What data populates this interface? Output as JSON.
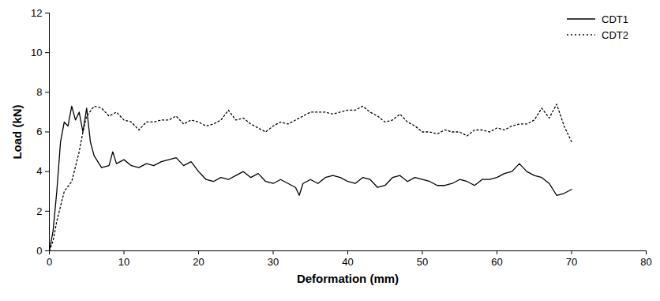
{
  "chart_data": {
    "type": "line",
    "x_label": "Deformation (mm)",
    "y_label": "Load (kN)",
    "xlim": [
      0,
      80
    ],
    "xticks": [
      0,
      10,
      20,
      30,
      40,
      50,
      60,
      70,
      80
    ],
    "ylim": [
      0,
      12
    ],
    "yticks": [
      0,
      2,
      4,
      6,
      8,
      10,
      12
    ],
    "grid": false,
    "legend": "top-right",
    "series": [
      {
        "name": "CDT1",
        "color": "#000000",
        "line_style": "solid",
        "x": [
          0,
          0.5,
          1,
          1.5,
          2,
          2.5,
          3,
          3.5,
          4,
          4.5,
          5,
          5.5,
          6,
          7,
          8,
          8.5,
          9,
          10,
          11,
          12,
          13,
          14,
          15,
          16,
          17,
          18,
          19,
          20,
          21,
          22,
          23,
          24,
          25,
          26,
          27,
          28,
          29,
          30,
          31,
          32,
          33,
          33.5,
          34,
          35,
          36,
          37,
          38,
          39,
          40,
          41,
          42,
          43,
          44,
          45,
          46,
          47,
          48,
          49,
          50,
          51,
          52,
          53,
          54,
          55,
          56,
          57,
          58,
          59,
          60,
          61,
          62,
          63,
          64,
          65,
          66,
          67,
          68,
          69,
          70
        ],
        "values": [
          0,
          1,
          3,
          5.5,
          6.5,
          6.3,
          7.3,
          6.6,
          7.0,
          6.0,
          7.2,
          5.5,
          4.8,
          4.2,
          4.3,
          5.0,
          4.4,
          4.6,
          4.3,
          4.2,
          4.4,
          4.3,
          4.5,
          4.6,
          4.7,
          4.3,
          4.5,
          4.0,
          3.6,
          3.5,
          3.7,
          3.6,
          3.8,
          4.0,
          3.7,
          3.9,
          3.5,
          3.4,
          3.6,
          3.4,
          3.2,
          2.8,
          3.4,
          3.6,
          3.4,
          3.7,
          3.8,
          3.7,
          3.5,
          3.4,
          3.7,
          3.6,
          3.2,
          3.3,
          3.7,
          3.8,
          3.5,
          3.7,
          3.6,
          3.5,
          3.3,
          3.3,
          3.4,
          3.6,
          3.5,
          3.3,
          3.6,
          3.6,
          3.7,
          3.9,
          4.0,
          4.4,
          4.0,
          3.8,
          3.7,
          3.4,
          2.8,
          2.9,
          3.1
        ]
      },
      {
        "name": "CDT2",
        "color": "#000000",
        "line_style": "dotted",
        "x": [
          0,
          0.5,
          1,
          2,
          3,
          4,
          4.5,
          5,
          6,
          7,
          8,
          9,
          10,
          11,
          12,
          13,
          14,
          15,
          16,
          17,
          18,
          19,
          20,
          21,
          22,
          23,
          24,
          25,
          26,
          27,
          28,
          29,
          30,
          31,
          32,
          33,
          34,
          35,
          36,
          37,
          38,
          39,
          40,
          41,
          42,
          43,
          44,
          45,
          46,
          47,
          48,
          49,
          50,
          51,
          52,
          53,
          54,
          55,
          56,
          57,
          58,
          59,
          60,
          61,
          62,
          63,
          64,
          65,
          66,
          67,
          68,
          69,
          70
        ],
        "values": [
          0,
          0.5,
          1.5,
          3,
          3.5,
          5,
          6,
          6.8,
          7.3,
          7.2,
          6.8,
          7.0,
          6.6,
          6.5,
          6.1,
          6.5,
          6.5,
          6.6,
          6.6,
          6.8,
          6.4,
          6.6,
          6.5,
          6.3,
          6.4,
          6.6,
          7.1,
          6.6,
          6.7,
          6.4,
          6.2,
          6.0,
          6.3,
          6.5,
          6.4,
          6.6,
          6.8,
          7.0,
          7.0,
          7.0,
          6.9,
          7.0,
          7.1,
          7.1,
          7.3,
          7.0,
          6.8,
          6.5,
          6.6,
          6.9,
          6.5,
          6.3,
          6.0,
          6.0,
          5.9,
          6.1,
          6.0,
          6.0,
          5.8,
          6.1,
          6.1,
          6.0,
          6.2,
          6.1,
          6.3,
          6.4,
          6.4,
          6.6,
          7.2,
          6.7,
          7.4,
          6.3,
          5.5
        ]
      }
    ]
  }
}
